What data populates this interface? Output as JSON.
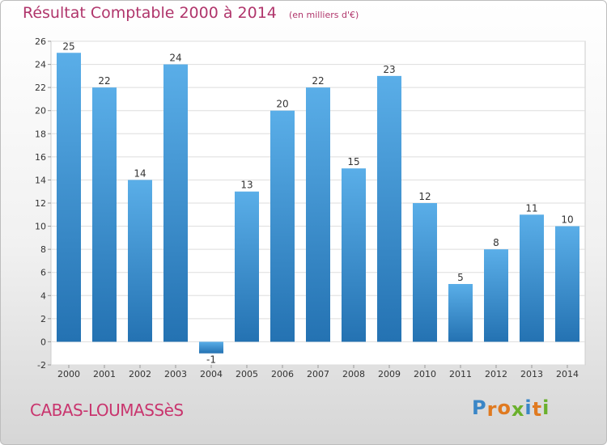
{
  "header": {
    "title": "Résultat Comptable 2000 à 2014",
    "unit": "(en milliers d'€)"
  },
  "footer": {
    "town": "CABAS-LOUMASSèS",
    "logo": "Proxiti"
  },
  "colors": {
    "bar_top": "#5aaee8",
    "bar_bottom": "#2472b2",
    "title": "#b0356b",
    "grid": "#dddddd",
    "logo_letters": [
      "#3a86c7",
      "#e07a20",
      "#e07a20",
      "#6ab02c",
      "#3a86c7",
      "#e07a20",
      "#6ab02c"
    ]
  },
  "chart_data": {
    "type": "bar",
    "title": "Résultat Comptable 2000 à 2014",
    "subtitle": "(en milliers d'€)",
    "xlabel": "",
    "ylabel": "",
    "categories": [
      "2000",
      "2001",
      "2002",
      "2003",
      "2004",
      "2005",
      "2006",
      "2007",
      "2008",
      "2009",
      "2010",
      "2011",
      "2012",
      "2013",
      "2014"
    ],
    "values": [
      25,
      22,
      14,
      24,
      -1,
      13,
      20,
      22,
      15,
      23,
      12,
      5,
      8,
      11,
      10
    ],
    "ylim": [
      -2,
      26
    ],
    "yticks": [
      -2,
      0,
      2,
      4,
      6,
      8,
      10,
      12,
      14,
      16,
      18,
      20,
      22,
      24,
      26
    ],
    "grid": true,
    "legend": "none"
  }
}
